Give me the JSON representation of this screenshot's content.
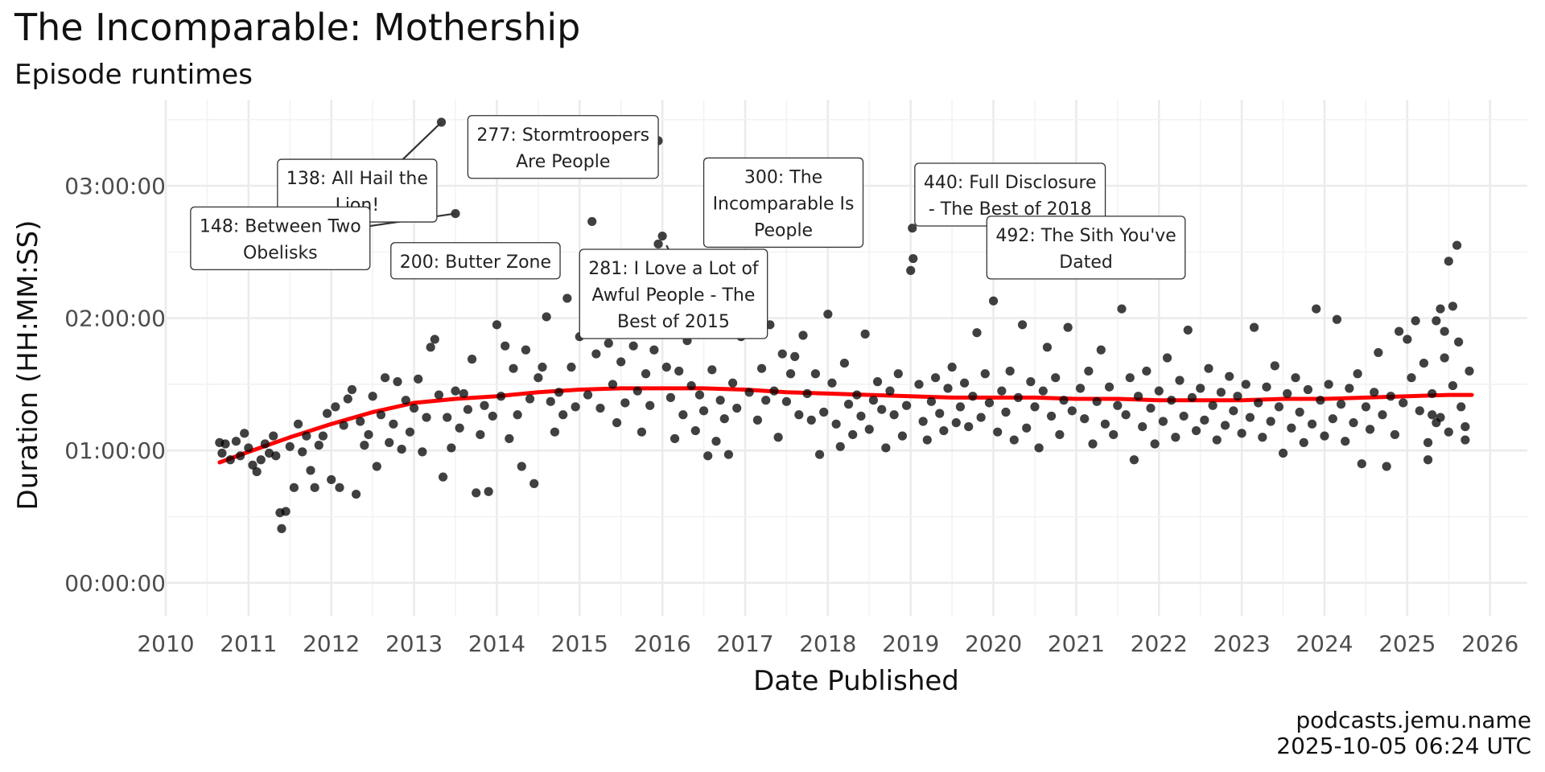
{
  "title": "The Incomparable: Mothership",
  "subtitle": "Episode runtimes",
  "caption_lines": [
    "podcasts.jemu.name",
    "2025-10-05 06:24 UTC"
  ],
  "chart_data": {
    "type": "scatter",
    "title": "The Incomparable: Mothership",
    "subtitle": "Episode runtimes",
    "xlabel": "Date Published",
    "ylabel": "Duration (HH:MM:SS)",
    "xlim": [
      2010.0,
      2026.45
    ],
    "ylim": [
      -0.25,
      3.65
    ],
    "x_ticks": [
      2010,
      2011,
      2012,
      2013,
      2014,
      2015,
      2016,
      2017,
      2018,
      2019,
      2020,
      2021,
      2022,
      2023,
      2024,
      2025,
      2026
    ],
    "x_tick_labels": [
      "2010",
      "2011",
      "2012",
      "2013",
      "2014",
      "2015",
      "2016",
      "2017",
      "2018",
      "2019",
      "2020",
      "2021",
      "2022",
      "2023",
      "2024",
      "2025",
      "2026"
    ],
    "y_ticks": [
      0,
      1,
      2,
      3
    ],
    "y_tick_labels": [
      "00:00:00",
      "01:00:00",
      "02:00:00",
      "03:00:00"
    ],
    "grid": true,
    "point_color": "#000000",
    "trend_color": "#ff0000",
    "trend_line": [
      [
        2010.65,
        0.91
      ],
      [
        2011.0,
        0.99
      ],
      [
        2011.5,
        1.1
      ],
      [
        2012.0,
        1.2
      ],
      [
        2012.5,
        1.29
      ],
      [
        2013.0,
        1.36
      ],
      [
        2013.5,
        1.39
      ],
      [
        2014.0,
        1.41
      ],
      [
        2014.5,
        1.44
      ],
      [
        2015.0,
        1.46
      ],
      [
        2015.5,
        1.47
      ],
      [
        2016.0,
        1.47
      ],
      [
        2016.5,
        1.47
      ],
      [
        2017.0,
        1.46
      ],
      [
        2017.5,
        1.44
      ],
      [
        2018.0,
        1.43
      ],
      [
        2018.5,
        1.42
      ],
      [
        2019.0,
        1.41
      ],
      [
        2019.5,
        1.4
      ],
      [
        2020.0,
        1.4
      ],
      [
        2020.5,
        1.4
      ],
      [
        2021.0,
        1.39
      ],
      [
        2021.5,
        1.39
      ],
      [
        2022.0,
        1.38
      ],
      [
        2022.5,
        1.38
      ],
      [
        2023.0,
        1.38
      ],
      [
        2023.5,
        1.39
      ],
      [
        2024.0,
        1.39
      ],
      [
        2024.5,
        1.4
      ],
      [
        2025.0,
        1.41
      ],
      [
        2025.5,
        1.42
      ],
      [
        2025.78,
        1.42
      ]
    ],
    "labeled_points": [
      [
        2013.33,
        3.48
      ],
      [
        2013.5,
        2.79
      ],
      [
        2015.95,
        3.34
      ],
      [
        2016.0,
        2.62
      ],
      [
        2019.02,
        2.68
      ],
      [
        2019.98,
        2.66
      ],
      [
        2020.0,
        2.13
      ]
    ],
    "annotations": [
      {
        "text": [
          "138: All Hail the",
          "Lion!"
        ],
        "x": 2011.35,
        "y": 3.2
      },
      {
        "text": [
          "277: Stormtroopers",
          "Are People"
        ],
        "x": 2013.65,
        "y": 3.53
      },
      {
        "text": [
          "148: Between Two",
          "Obelisks"
        ],
        "x": 2010.3,
        "y": 2.84
      },
      {
        "text": [
          "200: Butter Zone"
        ],
        "x": 2012.72,
        "y": 2.57
      },
      {
        "text": [
          "300: The",
          "Incomparable Is",
          "People"
        ],
        "x": 2016.5,
        "y": 3.21
      },
      {
        "text": [
          "281: I Love a Lot of",
          "Awful People - The",
          "Best of 2015"
        ],
        "x": 2015.0,
        "y": 2.52
      },
      {
        "text": [
          "440: Full Disclosure",
          "- The Best of 2018"
        ],
        "x": 2019.05,
        "y": 3.17
      },
      {
        "text": [
          "492: The Sith You've",
          "Dated"
        ],
        "x": 2019.92,
        "y": 2.77
      }
    ],
    "annotation_leaders": [
      [
        2012.5,
        2.98,
        2013.33,
        3.48
      ],
      [
        2012.4,
        2.69,
        2013.5,
        2.79
      ],
      [
        2016.05,
        2.55,
        2016.2,
        2.36
      ]
    ],
    "points": [
      [
        2010.65,
        1.06
      ],
      [
        2010.68,
        0.98
      ],
      [
        2010.72,
        1.05
      ],
      [
        2010.78,
        0.93
      ],
      [
        2010.85,
        1.07
      ],
      [
        2010.9,
        0.96
      ],
      [
        2010.95,
        1.13
      ],
      [
        2011.0,
        1.02
      ],
      [
        2011.05,
        0.89
      ],
      [
        2011.1,
        0.84
      ],
      [
        2011.15,
        0.93
      ],
      [
        2011.2,
        1.05
      ],
      [
        2011.25,
        0.98
      ],
      [
        2011.3,
        1.11
      ],
      [
        2011.33,
        0.96
      ],
      [
        2011.38,
        0.53
      ],
      [
        2011.4,
        0.41
      ],
      [
        2011.45,
        0.54
      ],
      [
        2011.5,
        1.03
      ],
      [
        2011.55,
        0.72
      ],
      [
        2011.6,
        1.2
      ],
      [
        2011.65,
        0.99
      ],
      [
        2011.7,
        1.11
      ],
      [
        2011.75,
        0.85
      ],
      [
        2011.8,
        0.72
      ],
      [
        2011.85,
        1.04
      ],
      [
        2011.9,
        1.11
      ],
      [
        2011.95,
        1.28
      ],
      [
        2012.0,
        0.78
      ],
      [
        2012.05,
        1.33
      ],
      [
        2012.1,
        0.72
      ],
      [
        2012.15,
        1.19
      ],
      [
        2012.2,
        1.39
      ],
      [
        2012.25,
        1.46
      ],
      [
        2012.3,
        0.67
      ],
      [
        2012.35,
        1.22
      ],
      [
        2012.4,
        1.04
      ],
      [
        2012.45,
        1.12
      ],
      [
        2012.5,
        1.41
      ],
      [
        2012.55,
        0.88
      ],
      [
        2012.6,
        1.27
      ],
      [
        2012.65,
        1.55
      ],
      [
        2012.7,
        1.06
      ],
      [
        2012.75,
        1.2
      ],
      [
        2012.8,
        1.52
      ],
      [
        2012.85,
        1.01
      ],
      [
        2012.9,
        1.38
      ],
      [
        2012.95,
        1.14
      ],
      [
        2013.0,
        1.32
      ],
      [
        2013.05,
        1.54
      ],
      [
        2013.1,
        0.99
      ],
      [
        2013.15,
        1.25
      ],
      [
        2013.2,
        1.78
      ],
      [
        2013.25,
        1.84
      ],
      [
        2013.3,
        1.42
      ],
      [
        2013.35,
        0.8
      ],
      [
        2013.4,
        1.25
      ],
      [
        2013.45,
        1.02
      ],
      [
        2013.5,
        1.45
      ],
      [
        2013.55,
        1.17
      ],
      [
        2013.6,
        1.43
      ],
      [
        2013.65,
        1.31
      ],
      [
        2013.7,
        1.69
      ],
      [
        2013.75,
        0.68
      ],
      [
        2013.8,
        1.12
      ],
      [
        2013.85,
        1.34
      ],
      [
        2013.9,
        0.69
      ],
      [
        2013.95,
        1.26
      ],
      [
        2014.0,
        1.95
      ],
      [
        2014.05,
        1.41
      ],
      [
        2014.1,
        1.79
      ],
      [
        2014.15,
        1.09
      ],
      [
        2014.2,
        1.62
      ],
      [
        2014.25,
        1.27
      ],
      [
        2014.3,
        0.88
      ],
      [
        2014.35,
        1.76
      ],
      [
        2014.4,
        1.39
      ],
      [
        2014.45,
        0.75
      ],
      [
        2014.5,
        1.55
      ],
      [
        2014.55,
        1.63
      ],
      [
        2014.6,
        2.01
      ],
      [
        2014.65,
        1.37
      ],
      [
        2014.7,
        1.14
      ],
      [
        2014.75,
        1.44
      ],
      [
        2014.8,
        1.27
      ],
      [
        2014.85,
        2.15
      ],
      [
        2014.9,
        1.63
      ],
      [
        2014.95,
        1.33
      ],
      [
        2015.0,
        1.86
      ],
      [
        2015.05,
        1.98
      ],
      [
        2015.1,
        1.42
      ],
      [
        2015.15,
        2.73
      ],
      [
        2015.2,
        1.73
      ],
      [
        2015.25,
        1.32
      ],
      [
        2015.3,
        2.22
      ],
      [
        2015.35,
        1.81
      ],
      [
        2015.4,
        1.5
      ],
      [
        2015.45,
        1.21
      ],
      [
        2015.5,
        1.67
      ],
      [
        2015.55,
        1.36
      ],
      [
        2015.6,
        1.98
      ],
      [
        2015.65,
        1.79
      ],
      [
        2015.7,
        1.45
      ],
      [
        2015.75,
        1.14
      ],
      [
        2015.8,
        1.58
      ],
      [
        2015.85,
        1.34
      ],
      [
        2015.9,
        1.76
      ],
      [
        2015.95,
        2.56
      ],
      [
        2016.05,
        1.63
      ],
      [
        2016.1,
        1.4
      ],
      [
        2016.15,
        1.09
      ],
      [
        2016.2,
        1.6
      ],
      [
        2016.25,
        1.27
      ],
      [
        2016.3,
        1.83
      ],
      [
        2016.35,
        1.49
      ],
      [
        2016.4,
        1.15
      ],
      [
        2016.45,
        1.42
      ],
      [
        2016.5,
        1.3
      ],
      [
        2016.55,
        0.96
      ],
      [
        2016.6,
        1.61
      ],
      [
        2016.65,
        1.07
      ],
      [
        2016.7,
        1.38
      ],
      [
        2016.75,
        1.24
      ],
      [
        2016.8,
        0.97
      ],
      [
        2016.85,
        1.51
      ],
      [
        2016.9,
        1.32
      ],
      [
        2016.95,
        1.86
      ],
      [
        2017.05,
        1.44
      ],
      [
        2017.1,
        2.64
      ],
      [
        2017.15,
        1.23
      ],
      [
        2017.2,
        1.62
      ],
      [
        2017.25,
        1.38
      ],
      [
        2017.3,
        1.95
      ],
      [
        2017.35,
        1.45
      ],
      [
        2017.4,
        1.1
      ],
      [
        2017.45,
        1.73
      ],
      [
        2017.5,
        1.37
      ],
      [
        2017.55,
        1.58
      ],
      [
        2017.6,
        1.71
      ],
      [
        2017.65,
        1.27
      ],
      [
        2017.7,
        1.87
      ],
      [
        2017.75,
        1.43
      ],
      [
        2017.8,
        1.23
      ],
      [
        2017.85,
        1.58
      ],
      [
        2017.9,
        0.97
      ],
      [
        2017.95,
        1.29
      ],
      [
        2018.0,
        2.03
      ],
      [
        2018.05,
        1.51
      ],
      [
        2018.1,
        1.2
      ],
      [
        2018.15,
        1.03
      ],
      [
        2018.2,
        1.66
      ],
      [
        2018.25,
        1.35
      ],
      [
        2018.3,
        1.12
      ],
      [
        2018.35,
        1.42
      ],
      [
        2018.4,
        1.26
      ],
      [
        2018.45,
        1.88
      ],
      [
        2018.5,
        1.16
      ],
      [
        2018.55,
        1.38
      ],
      [
        2018.6,
        1.52
      ],
      [
        2018.65,
        1.31
      ],
      [
        2018.7,
        1.02
      ],
      [
        2018.75,
        1.45
      ],
      [
        2018.8,
        1.27
      ],
      [
        2018.85,
        1.58
      ],
      [
        2018.9,
        1.11
      ],
      [
        2018.95,
        1.34
      ],
      [
        2019.0,
        2.36
      ],
      [
        2019.03,
        2.45
      ],
      [
        2019.1,
        1.5
      ],
      [
        2019.15,
        1.22
      ],
      [
        2019.2,
        1.08
      ],
      [
        2019.25,
        1.37
      ],
      [
        2019.3,
        1.55
      ],
      [
        2019.35,
        1.28
      ],
      [
        2019.4,
        1.15
      ],
      [
        2019.45,
        1.47
      ],
      [
        2019.5,
        1.63
      ],
      [
        2019.55,
        1.21
      ],
      [
        2019.6,
        1.33
      ],
      [
        2019.65,
        1.51
      ],
      [
        2019.7,
        1.18
      ],
      [
        2019.75,
        1.41
      ],
      [
        2019.8,
        1.89
      ],
      [
        2019.85,
        1.25
      ],
      [
        2019.9,
        1.58
      ],
      [
        2019.95,
        1.36
      ],
      [
        2020.05,
        1.14
      ],
      [
        2020.1,
        1.45
      ],
      [
        2020.15,
        1.29
      ],
      [
        2020.2,
        1.6
      ],
      [
        2020.25,
        1.08
      ],
      [
        2020.3,
        1.4
      ],
      [
        2020.35,
        1.95
      ],
      [
        2020.4,
        1.17
      ],
      [
        2020.45,
        1.52
      ],
      [
        2020.5,
        1.33
      ],
      [
        2020.55,
        1.02
      ],
      [
        2020.6,
        1.45
      ],
      [
        2020.65,
        1.78
      ],
      [
        2020.7,
        1.26
      ],
      [
        2020.75,
        1.55
      ],
      [
        2020.8,
        1.12
      ],
      [
        2020.85,
        1.38
      ],
      [
        2020.9,
        1.93
      ],
      [
        2020.95,
        1.3
      ],
      [
        2021.05,
        1.47
      ],
      [
        2021.1,
        1.24
      ],
      [
        2021.15,
        1.6
      ],
      [
        2021.2,
        1.05
      ],
      [
        2021.25,
        1.37
      ],
      [
        2021.3,
        1.76
      ],
      [
        2021.35,
        1.2
      ],
      [
        2021.4,
        1.48
      ],
      [
        2021.45,
        1.12
      ],
      [
        2021.5,
        1.34
      ],
      [
        2021.55,
        2.07
      ],
      [
        2021.6,
        1.27
      ],
      [
        2021.65,
        1.55
      ],
      [
        2021.7,
        0.93
      ],
      [
        2021.75,
        1.41
      ],
      [
        2021.8,
        1.18
      ],
      [
        2021.85,
        1.6
      ],
      [
        2021.9,
        1.32
      ],
      [
        2021.95,
        1.05
      ],
      [
        2022.0,
        1.45
      ],
      [
        2022.05,
        1.22
      ],
      [
        2022.1,
        1.7
      ],
      [
        2022.15,
        1.38
      ],
      [
        2022.2,
        1.1
      ],
      [
        2022.25,
        1.53
      ],
      [
        2022.3,
        1.26
      ],
      [
        2022.35,
        1.91
      ],
      [
        2022.4,
        1.4
      ],
      [
        2022.45,
        1.15
      ],
      [
        2022.5,
        1.47
      ],
      [
        2022.55,
        1.23
      ],
      [
        2022.6,
        1.62
      ],
      [
        2022.65,
        1.34
      ],
      [
        2022.7,
        1.08
      ],
      [
        2022.75,
        1.44
      ],
      [
        2022.8,
        1.19
      ],
      [
        2022.85,
        1.56
      ],
      [
        2022.9,
        1.3
      ],
      [
        2022.95,
        1.41
      ],
      [
        2023.0,
        1.13
      ],
      [
        2023.05,
        1.5
      ],
      [
        2023.1,
        1.25
      ],
      [
        2023.15,
        1.93
      ],
      [
        2023.2,
        1.36
      ],
      [
        2023.25,
        1.1
      ],
      [
        2023.3,
        1.48
      ],
      [
        2023.35,
        1.22
      ],
      [
        2023.4,
        1.64
      ],
      [
        2023.45,
        1.33
      ],
      [
        2023.5,
        0.98
      ],
      [
        2023.55,
        1.43
      ],
      [
        2023.6,
        1.17
      ],
      [
        2023.65,
        1.55
      ],
      [
        2023.7,
        1.29
      ],
      [
        2023.75,
        1.06
      ],
      [
        2023.8,
        1.46
      ],
      [
        2023.85,
        1.2
      ],
      [
        2023.9,
        2.07
      ],
      [
        2023.95,
        1.38
      ],
      [
        2024.0,
        1.11
      ],
      [
        2024.05,
        1.5
      ],
      [
        2024.1,
        1.24
      ],
      [
        2024.15,
        1.99
      ],
      [
        2024.2,
        1.35
      ],
      [
        2024.25,
        1.07
      ],
      [
        2024.3,
        1.47
      ],
      [
        2024.35,
        1.21
      ],
      [
        2024.4,
        1.58
      ],
      [
        2024.45,
        0.9
      ],
      [
        2024.5,
        1.33
      ],
      [
        2024.55,
        1.16
      ],
      [
        2024.6,
        1.44
      ],
      [
        2024.65,
        1.74
      ],
      [
        2024.7,
        1.27
      ],
      [
        2024.75,
        0.88
      ],
      [
        2024.8,
        1.41
      ],
      [
        2024.85,
        1.12
      ],
      [
        2024.9,
        1.9
      ],
      [
        2024.95,
        1.36
      ],
      [
        2025.0,
        1.84
      ],
      [
        2025.05,
        1.55
      ],
      [
        2025.1,
        1.98
      ],
      [
        2025.15,
        1.3
      ],
      [
        2025.2,
        1.66
      ],
      [
        2025.25,
        0.93
      ],
      [
        2025.3,
        1.43
      ],
      [
        2025.35,
        1.98
      ],
      [
        2025.4,
        1.25
      ],
      [
        2025.45,
        1.7
      ],
      [
        2025.5,
        1.14
      ],
      [
        2025.55,
        1.49
      ],
      [
        2025.6,
        2.55
      ],
      [
        2025.65,
        1.33
      ],
      [
        2025.7,
        1.08
      ],
      [
        2025.75,
        1.6
      ],
      [
        2025.5,
        2.43
      ],
      [
        2025.55,
        2.09
      ],
      [
        2025.4,
        2.07
      ],
      [
        2025.62,
        1.82
      ],
      [
        2025.45,
        1.9
      ],
      [
        2025.7,
        1.18
      ],
      [
        2025.3,
        1.27
      ],
      [
        2025.25,
        1.06
      ],
      [
        2025.35,
        1.21
      ]
    ]
  }
}
